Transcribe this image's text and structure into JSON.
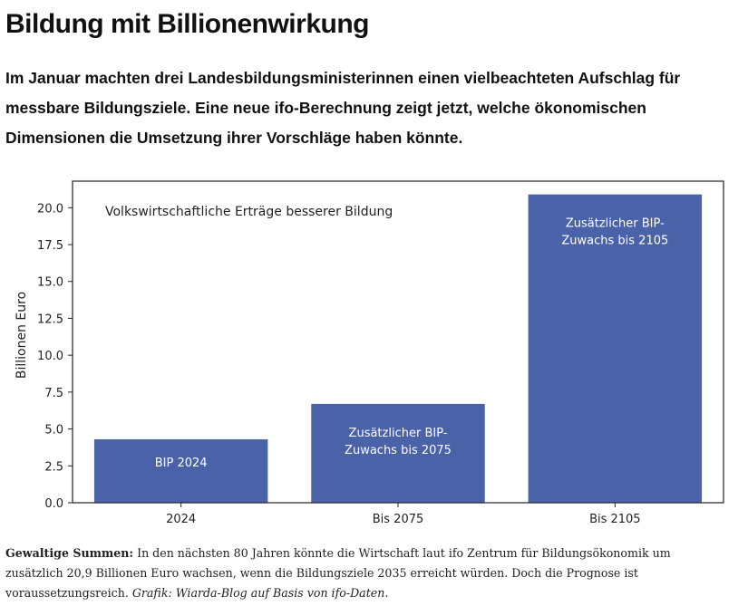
{
  "article": {
    "headline": "Bildung mit Billionenwirkung",
    "lead": "Im Januar machten drei Landesbildungsministerinnen einen vielbeachteten Aufschlag für messbare Bildungsziele. Eine neue ifo-Berechnung zeigt jetzt, welche ökonomischen Dimensionen die Umsetzung ihrer Vorschläge haben könnte."
  },
  "caption": {
    "lead_in": "Gewaltige Summen:",
    "text": "In den nächsten 80 Jahren könnte die Wirtschaft laut ifo Zentrum für Bildungsökonomik um zusätzlich 20,9 Billionen Euro wachsen, wenn die Bildungsziele 2035 erreicht würden. Doch die Prognose ist voraussetzungsreich.",
    "credit": "Grafik: Wiarda-Blog auf Basis von ifo-Daten."
  },
  "chart_data": {
    "type": "bar",
    "title": "Volkswirtschaftliche Erträge besserer Bildung",
    "xlabel": "",
    "ylabel": "Billionen Euro",
    "ylim": [
      0,
      21.8
    ],
    "yticks": [
      0,
      2.5,
      5,
      7.5,
      10,
      12.5,
      15,
      17.5,
      20
    ],
    "ytick_labels": [
      "0.0",
      "2.5",
      "5.0",
      "7.5",
      "10.0",
      "12.5",
      "15.0",
      "17.5",
      "20.0"
    ],
    "grid": false,
    "categories": [
      "2024",
      "Bis 2075",
      "Bis 2105"
    ],
    "values": [
      4.3,
      6.7,
      20.9
    ],
    "bar_labels": [
      [
        "BIP 2024"
      ],
      [
        "Zusätzlicher BIP-",
        "Zuwachs bis 2075"
      ],
      [
        "Zusätzlicher BIP-",
        "Zuwachs bis 2105"
      ]
    ],
    "colors": {
      "bar": "#4A62A8",
      "bar_text": "#ffffff",
      "axis": "#222222"
    }
  }
}
